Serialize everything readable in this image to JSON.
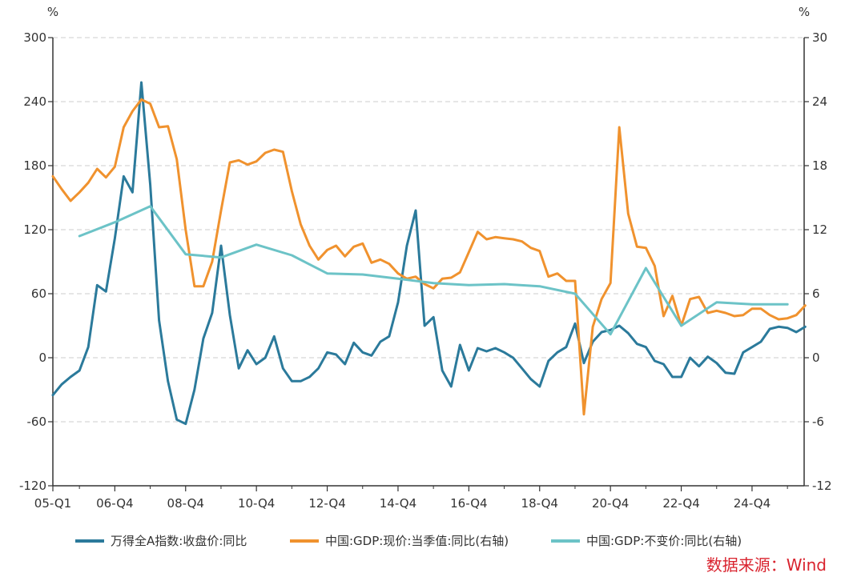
{
  "chart_data": {
    "type": "line",
    "units": {
      "left": "%",
      "right": "%"
    },
    "left_axis": {
      "min": -120,
      "max": 300,
      "ticks": [
        300,
        240,
        180,
        120,
        60,
        0,
        -60,
        -120
      ]
    },
    "right_axis": {
      "min": -12,
      "max": 30,
      "ticks": [
        30,
        24,
        18,
        12,
        6,
        0,
        -6,
        -12
      ]
    },
    "x_tick_labels": [
      "05-Q1",
      "06-Q4",
      "08-Q4",
      "10-Q4",
      "12-Q4",
      "14-Q4",
      "16-Q4",
      "18-Q4",
      "20-Q4",
      "22-Q4",
      "24-Q4"
    ],
    "x_tick_index": [
      0,
      7,
      15,
      23,
      31,
      39,
      47,
      55,
      63,
      71,
      79
    ],
    "grid": "horizontal dashed",
    "legend_position": "bottom",
    "series": [
      {
        "name": "万得全A指数:收盘价:同比",
        "axis": "left",
        "color": "#2b7a9b",
        "start_index": 0,
        "values": [
          -35,
          -25,
          -18,
          -12,
          10,
          68,
          62,
          112,
          170,
          155,
          258,
          162,
          35,
          -22,
          -58,
          -62,
          -30,
          18,
          42,
          105,
          40,
          -10,
          7,
          -6,
          0,
          20,
          -10,
          -22,
          -22,
          -18,
          -10,
          5,
          3,
          -6,
          14,
          5,
          2,
          15,
          20,
          52,
          105,
          138,
          30,
          38,
          -12,
          -27,
          12,
          -12,
          9,
          6,
          9,
          5,
          0,
          -10,
          -20,
          -27,
          -3,
          5,
          10,
          32,
          -5,
          15,
          24,
          26,
          30,
          23,
          13,
          10,
          -3,
          -6,
          -18,
          -18,
          0,
          -8,
          1,
          -5,
          -14,
          -15,
          5,
          10,
          15,
          27,
          29,
          28,
          24,
          29
        ]
      },
      {
        "name": "中国:GDP:现价:当季值:同比(右轴)",
        "axis": "right",
        "color": "#f0922e",
        "start_index": 0,
        "values": [
          17.0,
          15.8,
          14.7,
          15.5,
          16.4,
          17.7,
          16.9,
          17.9,
          21.6,
          23.1,
          24.2,
          23.8,
          21.6,
          21.7,
          18.6,
          12.0,
          6.7,
          6.7,
          9.0,
          13.8,
          18.3,
          18.5,
          18.1,
          18.4,
          19.2,
          19.5,
          19.3,
          15.6,
          12.5,
          10.5,
          9.2,
          10.1,
          10.5,
          9.5,
          10.4,
          10.7,
          8.9,
          9.2,
          8.8,
          7.9,
          7.4,
          7.6,
          6.9,
          6.5,
          7.4,
          7.5,
          8.0,
          9.9,
          11.8,
          11.1,
          11.3,
          11.2,
          11.1,
          10.9,
          10.3,
          10.0,
          7.6,
          7.9,
          7.2,
          7.2,
          -5.3,
          2.9,
          5.5,
          7.0,
          21.6,
          13.5,
          10.4,
          10.3,
          8.6,
          3.9,
          5.8,
          3.0,
          5.5,
          5.7,
          4.2,
          4.4,
          4.2,
          3.9,
          4.0,
          4.6,
          4.6,
          4.0,
          3.6,
          3.7,
          4.0,
          4.9
        ]
      },
      {
        "name": "中国:GDP:不变价:同比(右轴)",
        "axis": "right",
        "color": "#6cc3c7",
        "start_index": 3,
        "values": [
          11.4,
          null,
          null,
          null,
          12.7,
          null,
          null,
          null,
          14.2,
          null,
          null,
          null,
          9.7,
          null,
          null,
          null,
          9.4,
          null,
          null,
          null,
          10.6,
          null,
          null,
          null,
          9.6,
          null,
          null,
          null,
          7.9,
          null,
          null,
          null,
          7.8,
          null,
          null,
          null,
          7.4,
          null,
          null,
          null,
          7.0,
          null,
          null,
          null,
          6.8,
          null,
          null,
          null,
          6.9,
          null,
          null,
          null,
          6.7,
          null,
          null,
          null,
          6.0,
          null,
          null,
          null,
          2.2,
          null,
          null,
          null,
          8.4,
          null,
          null,
          null,
          3.0,
          null,
          null,
          null,
          5.2,
          null,
          null,
          null,
          5.0,
          null,
          null,
          null,
          5.0
        ]
      }
    ]
  },
  "source_text": "数据来源：Wind"
}
